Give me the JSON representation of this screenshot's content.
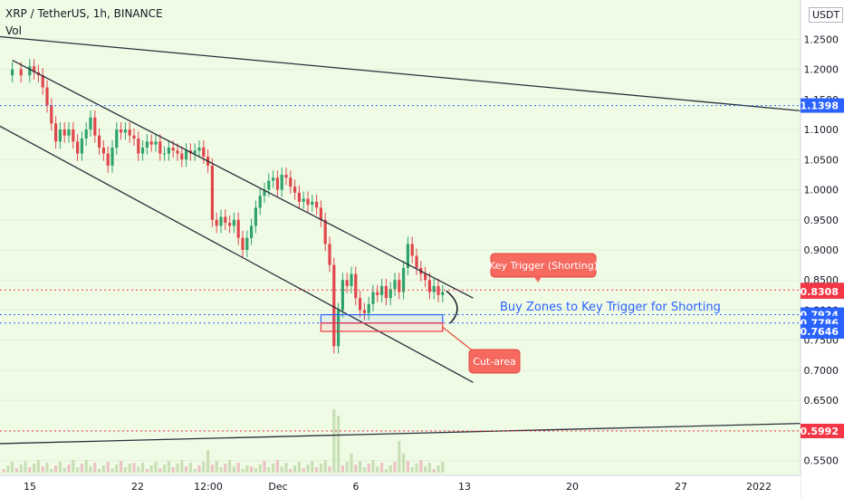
{
  "header": {
    "symbol": "XRP / TetherUS, 1h, BINANCE",
    "volume_label": "Vol",
    "unit": "USDT"
  },
  "chart_data": {
    "type": "candlestick",
    "symbol": "XRP / TetherUS",
    "interval": "1h",
    "exchange": "BINANCE",
    "ylim": [
      0.53,
      1.27
    ],
    "y_ticks": [
      1.25,
      1.2,
      1.15,
      1.1,
      1.05,
      1.0,
      0.95,
      0.9,
      0.85,
      0.8,
      0.75,
      0.7,
      0.65,
      0.6,
      0.55
    ],
    "y_tick_labels": [
      "1.2500",
      "1.2000",
      "1.1500",
      "1.1000",
      "1.0500",
      "1.0000",
      "0.9500",
      "0.9000",
      "0.8500",
      "0.8000",
      "0.7500",
      "0.7000",
      "0.6500",
      "0.6000",
      "0.5500"
    ],
    "x_tick_labels": [
      "15",
      "22",
      "12:00",
      "Dec",
      "6",
      "13",
      "20",
      "27",
      "2022"
    ],
    "price_path": [
      [
        0,
        1.19
      ],
      [
        2,
        1.2
      ],
      [
        4,
        1.19
      ],
      [
        6,
        1.205
      ],
      [
        7,
        1.195
      ],
      [
        8,
        1.19
      ],
      [
        9,
        1.17
      ],
      [
        10,
        1.14
      ],
      [
        11,
        1.11
      ],
      [
        12,
        1.08
      ],
      [
        13,
        1.1
      ],
      [
        14,
        1.09
      ],
      [
        15,
        1.1
      ],
      [
        16,
        1.08
      ],
      [
        17,
        1.06
      ],
      [
        18,
        1.085
      ],
      [
        19,
        1.1
      ],
      [
        20,
        1.12
      ],
      [
        21,
        1.09
      ],
      [
        22,
        1.07
      ],
      [
        23,
        1.06
      ],
      [
        24,
        1.04
      ],
      [
        25,
        1.07
      ],
      [
        26,
        1.1
      ],
      [
        27,
        1.095
      ],
      [
        28,
        1.1
      ],
      [
        29,
        1.09
      ],
      [
        30,
        1.085
      ],
      [
        31,
        1.06
      ],
      [
        32,
        1.07
      ],
      [
        33,
        1.08
      ],
      [
        34,
        1.075
      ],
      [
        35,
        1.08
      ],
      [
        36,
        1.06
      ],
      [
        37,
        1.06
      ],
      [
        38,
        1.07
      ],
      [
        39,
        1.065
      ],
      [
        40,
        1.06
      ],
      [
        41,
        1.05
      ],
      [
        42,
        1.065
      ],
      [
        43,
        1.06
      ],
      [
        44,
        1.065
      ],
      [
        45,
        1.07
      ],
      [
        46,
        1.055
      ],
      [
        47,
        1.04
      ],
      [
        48,
        0.95
      ],
      [
        49,
        0.94
      ],
      [
        50,
        0.955
      ],
      [
        51,
        0.945
      ],
      [
        52,
        0.94
      ],
      [
        53,
        0.95
      ],
      [
        54,
        0.92
      ],
      [
        55,
        0.9
      ],
      [
        56,
        0.92
      ],
      [
        57,
        0.94
      ],
      [
        58,
        0.97
      ],
      [
        59,
        0.99
      ],
      [
        60,
        1.0
      ],
      [
        61,
        1.015
      ],
      [
        62,
        1.02
      ],
      [
        63,
        1.0
      ],
      [
        64,
        1.025
      ],
      [
        65,
        1.02
      ],
      [
        66,
        1.005
      ],
      [
        67,
        0.995
      ],
      [
        68,
        0.98
      ],
      [
        69,
        0.985
      ],
      [
        70,
        0.975
      ],
      [
        71,
        0.98
      ],
      [
        72,
        0.97
      ],
      [
        73,
        0.95
      ],
      [
        74,
        0.91
      ],
      [
        75,
        0.875
      ],
      [
        76,
        0.74
      ],
      [
        77,
        0.8
      ],
      [
        78,
        0.85
      ],
      [
        79,
        0.84
      ],
      [
        80,
        0.86
      ],
      [
        81,
        0.82
      ],
      [
        82,
        0.8
      ],
      [
        83,
        0.795
      ],
      [
        84,
        0.81
      ],
      [
        85,
        0.83
      ],
      [
        86,
        0.825
      ],
      [
        87,
        0.84
      ],
      [
        88,
        0.82
      ],
      [
        89,
        0.835
      ],
      [
        90,
        0.85
      ],
      [
        91,
        0.83
      ],
      [
        92,
        0.87
      ],
      [
        93,
        0.91
      ],
      [
        94,
        0.89
      ],
      [
        95,
        0.87
      ],
      [
        96,
        0.86
      ],
      [
        97,
        0.85
      ],
      [
        98,
        0.83
      ],
      [
        99,
        0.84
      ],
      [
        100,
        0.825
      ],
      [
        101,
        0.83
      ]
    ],
    "volume_spikes": [
      [
        16,
        0.2
      ],
      [
        30,
        0.15
      ],
      [
        47,
        0.35
      ],
      [
        57,
        0.1
      ],
      [
        76,
        1.0
      ],
      [
        77,
        0.9
      ],
      [
        80,
        0.3
      ],
      [
        91,
        0.5
      ],
      [
        92,
        0.3
      ]
    ],
    "price_levels": [
      {
        "label": "1.1398",
        "value": 1.1398,
        "color": "#2962ff",
        "line": "dotted"
      },
      {
        "label": "0.8334",
        "value": 0.8334,
        "color": "#f23645",
        "line": "dotted"
      },
      {
        "label": "0.8308",
        "value": 0.8308,
        "color": "#f23645",
        "line": "none"
      },
      {
        "label": "0.7924",
        "value": 0.7924,
        "color": "#2962ff",
        "line": "dotted"
      },
      {
        "label": "0.7786",
        "value": 0.7786,
        "color": "#2962ff",
        "line": "dotted"
      },
      {
        "label": "0.7646",
        "value": 0.7646,
        "color": "#2962ff",
        "line": "none"
      },
      {
        "label": "0.5992",
        "value": 0.5992,
        "color": "#f23645",
        "line": "dotted"
      }
    ],
    "trendlines": [
      {
        "from": [
          -2,
          1.255
        ],
        "to": [
          185,
          1.13
        ]
      },
      {
        "from": [
          2,
          1.215
        ],
        "to": [
          108,
          0.82
        ]
      },
      {
        "from": [
          -2,
          1.11
        ],
        "to": [
          108,
          0.68
        ]
      },
      {
        "from": [
          -2,
          0.578
        ],
        "to": [
          185,
          0.612
        ]
      }
    ],
    "zones": [
      {
        "name": "buy-zone",
        "x_range": [
          73,
          101
        ],
        "y_range": [
          0.7786,
          0.7924
        ],
        "color": "#2962ff"
      },
      {
        "name": "cut-area",
        "x_range": [
          73,
          101
        ],
        "y_range": [
          0.7646,
          0.7786
        ],
        "color": "#f23645"
      }
    ],
    "annotations": {
      "key_trigger": "Key Trigger (Shorting)",
      "buy_zones": "Buy Zones to Key Trigger for Shorting",
      "cut_area": "Cut-area"
    }
  }
}
